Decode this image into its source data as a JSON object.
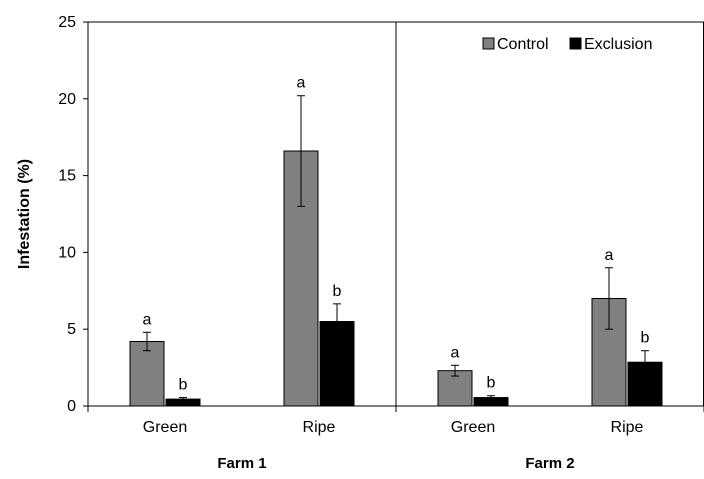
{
  "chart_data": {
    "type": "bar",
    "title": "",
    "xlabel": "",
    "ylabel": "Infestation (%)",
    "ylim": [
      0,
      25
    ],
    "yticks": [
      "0",
      "5",
      "10",
      "15",
      "20",
      "25"
    ],
    "grid": false,
    "legend_position": "top-right",
    "groups": [
      {
        "label": "Farm 1",
        "categories": [
          "Green",
          "Ripe"
        ]
      },
      {
        "label": "Farm 2",
        "categories": [
          "Green",
          "Ripe"
        ]
      }
    ],
    "series": [
      {
        "name": "Control",
        "color": "#808080",
        "values": [
          4.2,
          16.6,
          2.3,
          7.0
        ],
        "errors": [
          0.6,
          3.6,
          0.35,
          2.0
        ],
        "labels": [
          "a",
          "a",
          "a",
          "a"
        ]
      },
      {
        "name": "Exclusion",
        "color": "#000000",
        "values": [
          0.45,
          5.5,
          0.55,
          2.85
        ],
        "errors": [
          0.1,
          1.15,
          0.12,
          0.75
        ],
        "labels": [
          "b",
          "b",
          "b",
          "b"
        ]
      }
    ]
  }
}
